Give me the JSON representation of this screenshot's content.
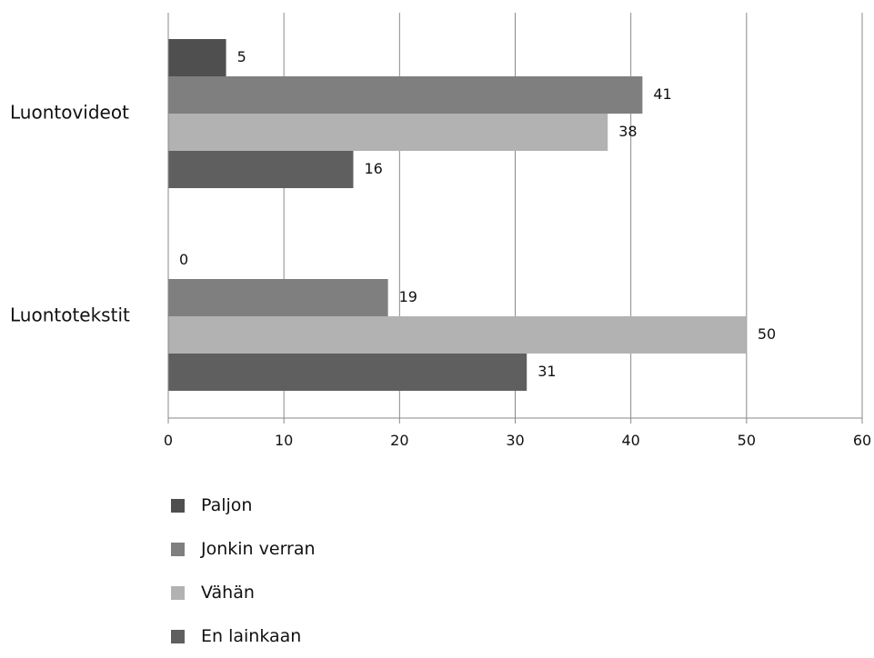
{
  "chart_data": {
    "type": "bar",
    "orientation": "horizontal",
    "title": "",
    "xlabel": "",
    "ylabel": "",
    "categories": [
      "Luontovideot",
      "Luontotekstit"
    ],
    "series": [
      {
        "name": "Paljon",
        "values": [
          5,
          0
        ],
        "color": "#4f4f4f"
      },
      {
        "name": "Jonkin verran",
        "values": [
          41,
          19
        ],
        "color": "#7f7f7f"
      },
      {
        "name": "Vähän",
        "values": [
          38,
          50
        ],
        "color": "#b2b2b2"
      },
      {
        "name": "En lainkaan",
        "values": [
          16,
          31
        ],
        "color": "#5f5f5f"
      }
    ],
    "xlim": [
      0,
      60
    ],
    "xticks": [
      0,
      10,
      20,
      30,
      40,
      50,
      60
    ],
    "grid": true,
    "legend_position": "bottom"
  }
}
